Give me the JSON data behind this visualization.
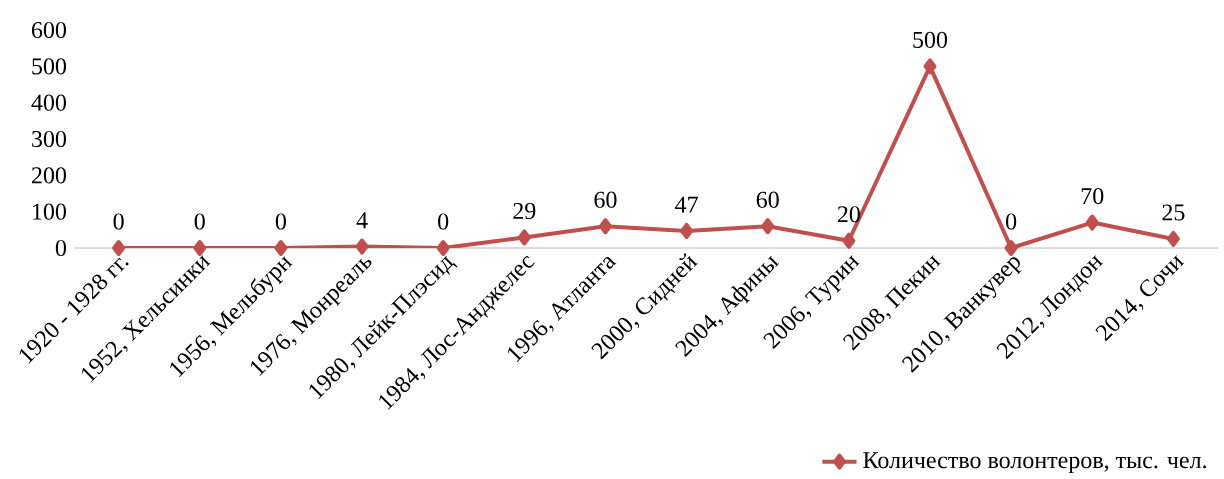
{
  "chart_data": {
    "type": "line",
    "categories": [
      "1920 - 1928 гг.",
      "1952, Хельсинки",
      "1956, Мельбурн",
      "1976, Монреаль",
      "1980, Лейк-Плэсид",
      "1984, Лос-Анджелес",
      "1996, Атланта",
      "2000, Сидней",
      "2004, Афины",
      "2006, Турин",
      "2008, Пекин",
      "2010, Ванкувер",
      "2012, Лондон",
      "2014, Сочи"
    ],
    "series": [
      {
        "name": "Количество волонтеров, тыс. чел.",
        "color": "#c0504d",
        "values": [
          0,
          0,
          0,
          4,
          0,
          29,
          60,
          47,
          60,
          20,
          500,
          0,
          70,
          25
        ]
      }
    ],
    "ylim": [
      0,
      600
    ],
    "yticks": [
      0,
      100,
      200,
      300,
      400,
      500,
      600
    ],
    "data_labels": true,
    "grid": false,
    "legend": "bottom right",
    "marker": "diamond",
    "line_style": "solid"
  }
}
